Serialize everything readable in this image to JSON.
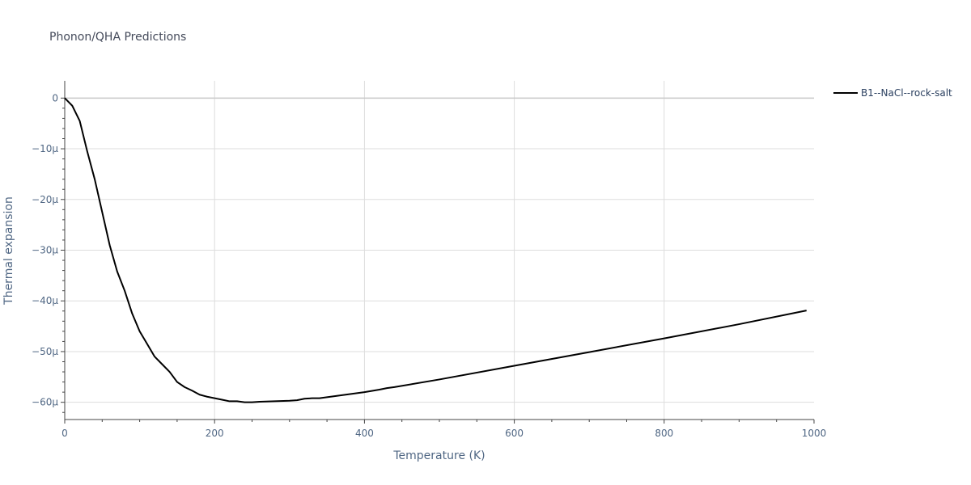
{
  "chart_data": {
    "type": "line",
    "title": "Phonon/QHA Predictions",
    "xlabel": "Temperature (K)",
    "ylabel": "Thermal expansion",
    "xlim": [
      0,
      1000
    ],
    "ylim": [
      -6.34e-05,
      3.4e-06
    ],
    "grid": true,
    "legend_position": "top-right",
    "x_ticks": [
      0,
      200,
      400,
      600,
      800,
      1000
    ],
    "x_tick_labels": [
      "0",
      "200",
      "400",
      "600",
      "800",
      "1000"
    ],
    "y_ticks": [
      0,
      -1e-05,
      -2e-05,
      -3e-05,
      -4e-05,
      -5e-05,
      -6e-05
    ],
    "y_tick_labels": [
      "0",
      "−10μ",
      "−20μ",
      "−30μ",
      "−40μ",
      "−50μ",
      "−60μ"
    ],
    "series": [
      {
        "name": "B1--NaCl--rock-salt",
        "color": "#000000",
        "x": [
          0,
          10,
          20,
          30,
          40,
          50,
          60,
          70,
          80,
          90,
          100,
          110,
          120,
          130,
          140,
          150,
          160,
          170,
          180,
          190,
          200,
          210,
          220,
          230,
          240,
          250,
          260,
          280,
          300,
          310,
          320,
          330,
          340,
          360,
          380,
          400,
          420,
          430,
          440,
          500,
          600,
          700,
          800,
          900,
          990
        ],
        "y": [
          0,
          -1.5e-06,
          -4.5e-06,
          -1.05e-05,
          -1.6e-05,
          -2.25e-05,
          -2.9e-05,
          -3.42e-05,
          -3.8e-05,
          -4.25e-05,
          -4.6e-05,
          -4.85e-05,
          -5.1e-05,
          -5.25e-05,
          -5.4e-05,
          -5.6e-05,
          -5.7e-05,
          -5.77e-05,
          -5.85e-05,
          -5.89e-05,
          -5.92e-05,
          -5.95e-05,
          -5.98e-05,
          -5.98e-05,
          -6e-05,
          -6e-05,
          -5.99e-05,
          -5.98e-05,
          -5.97e-05,
          -5.96e-05,
          -5.93e-05,
          -5.92e-05,
          -5.92e-05,
          -5.88e-05,
          -5.84e-05,
          -5.8e-05,
          -5.75e-05,
          -5.72e-05,
          -5.7e-05,
          -5.55e-05,
          -5.28e-05,
          -5.01e-05,
          -4.74e-05,
          -4.46e-05,
          -4.19e-05
        ]
      }
    ]
  }
}
